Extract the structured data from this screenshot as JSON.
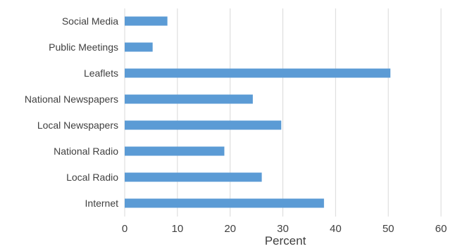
{
  "chart_data": {
    "type": "bar",
    "orientation": "horizontal",
    "categories": [
      "Social Media",
      "Public Meetings",
      "Leaflets",
      "National Newspapers",
      "Local Newspapers",
      "National Radio",
      "Local Radio",
      "Internet"
    ],
    "values": [
      8.1,
      5.3,
      50.4,
      24.3,
      29.7,
      18.9,
      26.0,
      37.8
    ],
    "xlabel": "Percent",
    "ylabel": "",
    "xlim": [
      0,
      60
    ],
    "xticks": [
      0,
      10,
      20,
      30,
      40,
      50,
      60
    ],
    "grid": "vertical",
    "legend": "none",
    "bar_color": "#5b9bd5",
    "grid_color": "#d9d9d9"
  }
}
